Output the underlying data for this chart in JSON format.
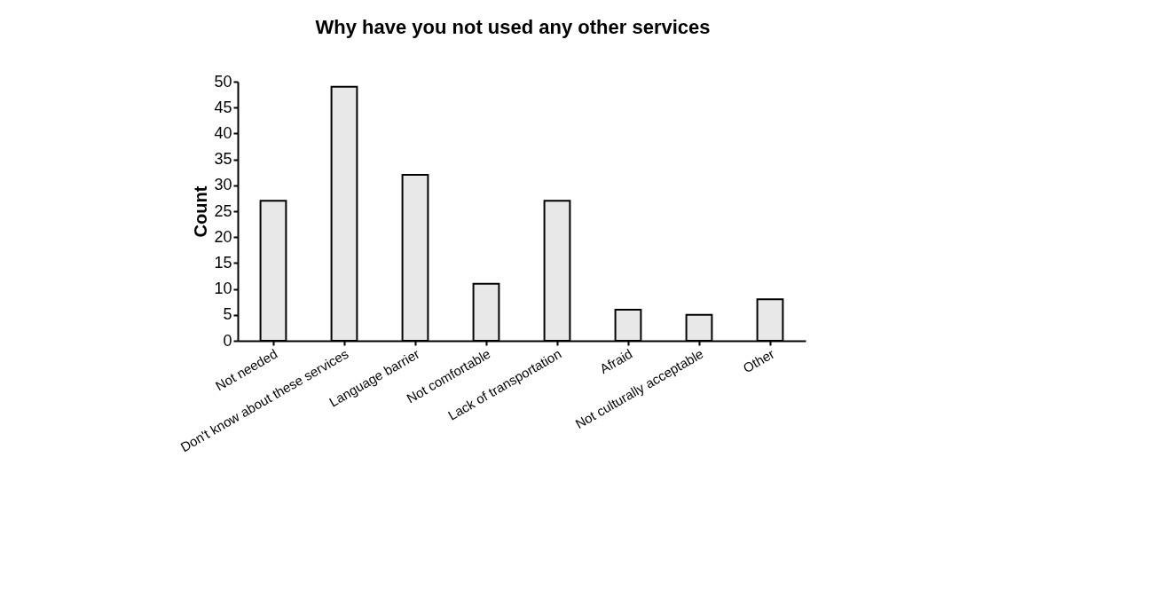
{
  "chart_data": {
    "type": "bar",
    "title": "Why have you not used any other services",
    "ylabel": "Count",
    "categories": [
      "Not needed",
      "Don't know about these services",
      "Language barrier",
      "Not comfortable",
      "Lack of transportation",
      "Afraid",
      "Not culturally acceptable",
      "Other"
    ],
    "values": [
      27,
      49,
      32,
      11,
      27,
      6,
      5,
      8
    ],
    "color": "#e8e8e8",
    "ylim": [
      0,
      50
    ],
    "yticks": [
      0,
      5,
      10,
      15,
      20,
      25,
      30,
      35,
      40,
      45,
      50
    ],
    "grid": false
  }
}
